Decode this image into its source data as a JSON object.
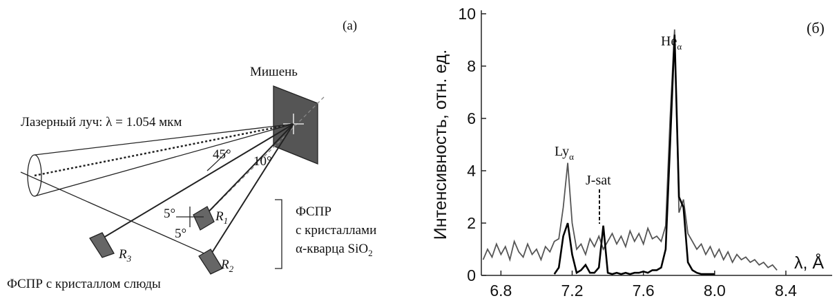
{
  "diagram": {
    "panel_label": "(a)",
    "target": "Мишень",
    "laser": "Лазерный луч: λ = 1.054 мкм",
    "angle_45": "45°",
    "angle_10": "10°",
    "angle_5a": "5°",
    "angle_5b": "5°",
    "r1": {
      "text": "R",
      "sub": "1"
    },
    "r2": {
      "text": "R",
      "sub": "2"
    },
    "r3": {
      "text": "R",
      "sub": "3"
    },
    "quartz_label": [
      "ФСПР",
      "с кристаллами",
      "α-кварца SiO"
    ],
    "quartz_sub": "2",
    "mica_label": "ФСПР с кристаллом слюды"
  },
  "chart_data": {
    "type": "line",
    "panel_label": "(б)",
    "xlabel": "λ, Å",
    "ylabel": "Интенсивность, отн. ед.",
    "annotations": [
      {
        "text": "Ly",
        "sub": "α"
      },
      {
        "text": "J-sat"
      },
      {
        "text": "He",
        "sub": "α"
      }
    ],
    "x": [
      6.7,
      6.725,
      6.75,
      6.775,
      6.8,
      6.825,
      6.85,
      6.875,
      6.9,
      6.925,
      6.95,
      6.975,
      7.0,
      7.025,
      7.05,
      7.075,
      7.1,
      7.125,
      7.15,
      7.175,
      7.2,
      7.225,
      7.25,
      7.275,
      7.3,
      7.325,
      7.35,
      7.375,
      7.4,
      7.425,
      7.45,
      7.475,
      7.5,
      7.525,
      7.55,
      7.575,
      7.6,
      7.625,
      7.65,
      7.675,
      7.7,
      7.725,
      7.75,
      7.775,
      7.8,
      7.825,
      7.85,
      7.875,
      7.9,
      7.925,
      7.95,
      7.975,
      8.0,
      8.025,
      8.05,
      8.075,
      8.1,
      8.125,
      8.15,
      8.175,
      8.2,
      8.225,
      8.25,
      8.275,
      8.3,
      8.325,
      8.35
    ],
    "series": [
      {
        "color": "#555555",
        "values": [
          0.6,
          1.0,
          0.7,
          1.2,
          0.8,
          1.1,
          0.6,
          1.3,
          0.9,
          0.7,
          1.2,
          0.8,
          1.0,
          0.6,
          1.1,
          0.9,
          1.3,
          1.4,
          2.6,
          4.3,
          2.0,
          1.0,
          1.2,
          0.8,
          1.4,
          1.1,
          1.5,
          1.0,
          1.3,
          1.6,
          1.2,
          1.5,
          1.1,
          1.7,
          1.3,
          1.6,
          1.2,
          1.8,
          1.4,
          1.5,
          1.3,
          1.9,
          6.0,
          9.4,
          2.4,
          2.9,
          1.6,
          1.3,
          1.0,
          1.2,
          0.8,
          1.1,
          0.7,
          1.0,
          0.6,
          0.9,
          0.5,
          0.8,
          0.6,
          0.7,
          0.5,
          0.6,
          0.4,
          0.5,
          0.3,
          0.4,
          0.2
        ]
      },
      {
        "color": "#000000",
        "values": [
          null,
          null,
          null,
          null,
          null,
          null,
          null,
          null,
          null,
          null,
          null,
          null,
          null,
          null,
          null,
          null,
          0.05,
          0.3,
          1.5,
          2.0,
          0.8,
          0.1,
          0.2,
          0.4,
          0.1,
          0.1,
          0.3,
          1.9,
          0.1,
          0.05,
          0.1,
          0.05,
          0.1,
          0.05,
          0.1,
          0.1,
          0.15,
          0.1,
          0.2,
          0.2,
          0.3,
          1.0,
          5.0,
          9.2,
          3.0,
          2.6,
          0.5,
          0.2,
          0.1,
          0.05,
          0.05,
          0.05,
          0.05,
          null,
          null,
          null,
          null,
          null,
          null,
          null,
          null,
          null,
          null,
          null,
          null,
          null,
          null
        ]
      }
    ],
    "xlim": [
      6.69,
      8.66
    ],
    "ylim": [
      0,
      10
    ],
    "xticks": [
      6.8,
      7.2,
      7.6,
      {
        "value": 8,
        "label": "8.0"
      },
      8.4
    ],
    "yticks": [
      0,
      2,
      4,
      6,
      8,
      10
    ]
  }
}
